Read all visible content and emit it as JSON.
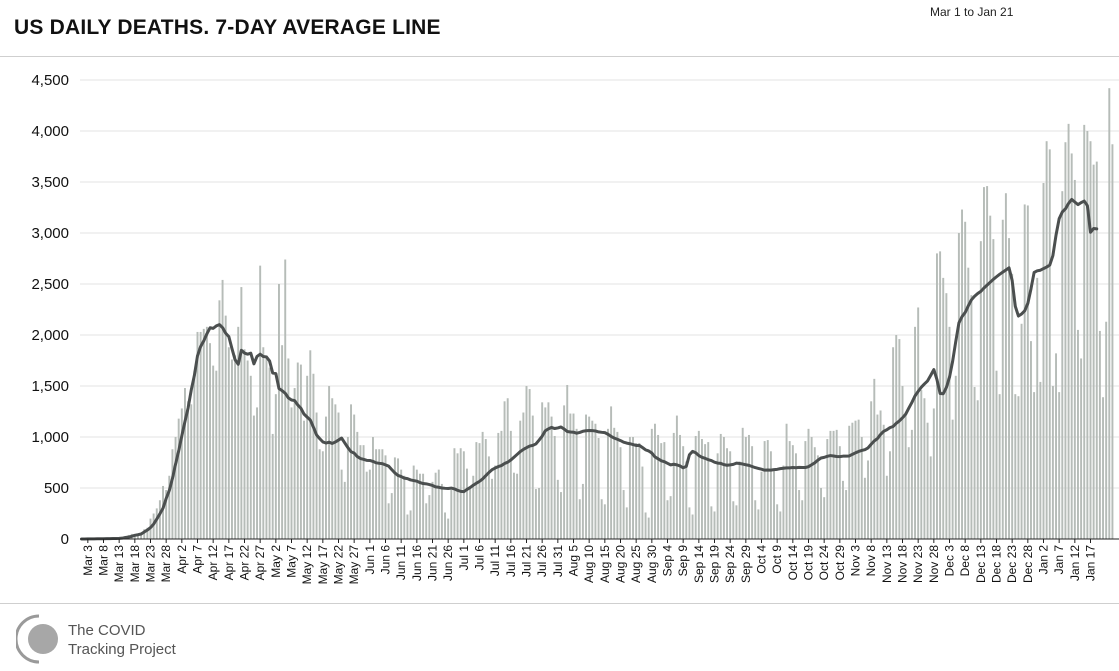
{
  "header": {
    "title": "US DAILY DEATHS. 7-DAY AVERAGE LINE",
    "date_range": "Mar 1 to Jan 21"
  },
  "footer": {
    "logo_line1": "The COVID",
    "logo_line2": "Tracking Project"
  },
  "colors": {
    "bar": "#b6bcb8",
    "line": "#4b4f4f",
    "grid": "#e3e3e3",
    "axis": "#222222"
  },
  "chart_data": {
    "type": "bar",
    "title": "US DAILY DEATHS. 7-DAY AVERAGE LINE",
    "xlabel": "",
    "ylabel": "",
    "ylim": [
      0,
      4500
    ],
    "yticks": [
      0,
      500,
      1000,
      1500,
      2000,
      2500,
      3000,
      3500,
      4000,
      4500
    ],
    "ytick_labels": [
      "0",
      "500",
      "1,000",
      "1,500",
      "2,000",
      "2,500",
      "3,000",
      "3,500",
      "4,000",
      "4,500"
    ],
    "grid": true,
    "start_date": "Mar 1",
    "x_tick_labels": [
      "Mar 3",
      "Mar 8",
      "Mar 13",
      "Mar 18",
      "Mar 23",
      "Mar 28",
      "Apr 2",
      "Apr 7",
      "Apr 12",
      "Apr 17",
      "Apr 22",
      "Apr 27",
      "May 2",
      "May 7",
      "May 12",
      "May 17",
      "May 22",
      "May 27",
      "Jun 1",
      "Jun 6",
      "Jun 11",
      "Jun 16",
      "Jun 21",
      "Jun 26",
      "Jul 1",
      "Jul 6",
      "Jul 11",
      "Jul 16",
      "Jul 21",
      "Jul 26",
      "Jul 31",
      "Aug 5",
      "Aug 10",
      "Aug 15",
      "Aug 20",
      "Aug 25",
      "Aug 30",
      "Sep 4",
      "Sep 9",
      "Sep 14",
      "Sep 19",
      "Sep 24",
      "Sep 29",
      "Oct 4",
      "Oct 9",
      "Oct 14",
      "Oct 19",
      "Oct 24",
      "Oct 29",
      "Nov 3",
      "Nov 8",
      "Nov 13",
      "Nov 18",
      "Nov 23",
      "Nov 28",
      "Dec 3",
      "Dec 8",
      "Dec 13",
      "Dec 18",
      "Dec 23",
      "Dec 28",
      "Jan 2",
      "Jan 7",
      "Jan 12",
      "Jan 17"
    ],
    "series": [
      {
        "name": "Daily deaths",
        "kind": "bar",
        "values": [
          0,
          0,
          1,
          1,
          2,
          1,
          3,
          4,
          3,
          5,
          5,
          7,
          8,
          10,
          12,
          40,
          50,
          30,
          45,
          55,
          95,
          110,
          200,
          250,
          300,
          380,
          520,
          480,
          620,
          880,
          1000,
          1180,
          1280,
          1480,
          1350,
          1320,
          1650,
          2030,
          2030,
          2060,
          2080,
          1920,
          1700,
          1650,
          2340,
          2540,
          2190,
          1880,
          1760,
          1800,
          2080,
          2470,
          1860,
          1750,
          1600,
          1210,
          1290,
          2680,
          1880,
          1800,
          1680,
          1030,
          1420,
          2500,
          1900,
          2740,
          1770,
          1290,
          1480,
          1730,
          1710,
          1160,
          1600,
          1850,
          1620,
          1240,
          880,
          860,
          1200,
          1500,
          1380,
          1320,
          1240,
          680,
          560,
          1000,
          1320,
          1220,
          1050,
          920,
          920,
          660,
          680,
          1000,
          880,
          880,
          880,
          820,
          350,
          450,
          800,
          790,
          680,
          620,
          240,
          280,
          720,
          680,
          640,
          640,
          350,
          430,
          560,
          650,
          680,
          540,
          260,
          200,
          480,
          890,
          840,
          890,
          860,
          690,
          490,
          620,
          950,
          940,
          1050,
          980,
          810,
          590,
          720,
          1040,
          1060,
          1350,
          1380,
          1060,
          650,
          640,
          1160,
          1240,
          1500,
          1470,
          1210,
          490,
          500,
          1340,
          1290,
          1340,
          1200,
          1010,
          580,
          460,
          1310,
          1510,
          1230,
          1230,
          1080,
          390,
          540,
          1220,
          1200,
          1160,
          1130,
          990,
          390,
          340,
          1080,
          1300,
          1090,
          1050,
          900,
          480,
          310,
          1000,
          1000,
          940,
          940,
          710,
          260,
          210,
          1080,
          1130,
          1020,
          940,
          950,
          380,
          420,
          1040,
          1210,
          1020,
          910,
          760,
          310,
          240,
          1010,
          1060,
          980,
          930,
          950,
          320,
          270,
          840,
          1030,
          1000,
          890,
          860,
          370,
          330,
          760,
          1090,
          1000,
          1020,
          910,
          380,
          290,
          660,
          960,
          970,
          860,
          680,
          340,
          270,
          720,
          1130,
          960,
          920,
          840,
          480,
          380,
          960,
          1080,
          1000,
          900,
          820,
          500,
          410,
          980,
          1060,
          1060,
          1070,
          910,
          570,
          480,
          1110,
          1140,
          1160,
          1170,
          1000,
          600,
          770,
          1350,
          1570,
          1220,
          1260,
          1120,
          620,
          860,
          1880,
          2000,
          1960,
          1500,
          1230,
          900,
          1070,
          2080,
          2270,
          1460,
          1380,
          1140,
          810,
          1280,
          2800,
          2820,
          2560,
          2410,
          2080,
          1170,
          1600,
          3000,
          3230,
          3110,
          2660,
          2390,
          1490,
          1360,
          2920,
          3450,
          3460,
          3170,
          2940,
          1650,
          1420,
          3130,
          3390,
          2950,
          2600,
          1420,
          1400,
          2110,
          3280,
          3270,
          1940,
          1440,
          2560,
          1540,
          3490,
          3900,
          3820,
          1500,
          1820,
          1440,
          3410,
          3890,
          4070,
          3780,
          3520,
          2050,
          1770,
          4060,
          4000,
          3900,
          3670,
          3700,
          2040,
          1390,
          2130,
          4420,
          3870
        ]
      },
      {
        "name": "7-day average",
        "kind": "line",
        "values": [
          0,
          0,
          1,
          1,
          1,
          2,
          2,
          3,
          4,
          4,
          5,
          5,
          6,
          8,
          15,
          19,
          26,
          36,
          42,
          49,
          69,
          88,
          112,
          146,
          195,
          247,
          302,
          397,
          476,
          593,
          735,
          864,
          1012,
          1153,
          1284,
          1460,
          1603,
          1796,
          1887,
          1942,
          2012,
          2071,
          2065,
          2089,
          2102,
          2072,
          2017,
          1984,
          1866,
          1757,
          1713,
          1850,
          1823,
          1812,
          1822,
          1717,
          1790,
          1812,
          1789,
          1785,
          1746,
          1627,
          1622,
          1475,
          1454,
          1429,
          1383,
          1363,
          1357,
          1314,
          1282,
          1224,
          1195,
          1167,
          1096,
          1020,
          984,
          952,
          941,
          949,
          937,
          951,
          970,
          990,
          942,
          896,
          856,
          842,
          808,
          789,
          781,
          771,
          770,
          761,
          747,
          742,
          738,
          727,
          714,
          680,
          648,
          623,
          612,
          597,
          592,
          579,
          573,
          567,
          553,
          544,
          541,
          534,
          525,
          511,
          507,
          500,
          497,
          495,
          499,
          491,
          477,
          467,
          464,
          486,
          504,
          527,
          547,
          565,
          589,
          621,
          652,
          679,
          696,
          710,
          720,
          740,
          753,
          774,
          801,
          829,
          857,
          878,
          895,
          911,
          918,
          932,
          969,
          1008,
          1061,
          1080,
          1094,
          1083,
          1089,
          1098,
          1078,
          1054,
          1049,
          1047,
          1037,
          1045,
          1056,
          1061,
          1064,
          1063,
          1059,
          1050,
          1046,
          1043,
          1027,
          1006,
          989,
          978,
          965,
          949,
          940,
          934,
          926,
          917,
          918,
          897,
          874,
          863,
          843,
          805,
          786,
          767,
          758,
          742,
          727,
          733,
          727,
          716,
          698,
          712,
          826,
          859,
          846,
          818,
          801,
          791,
          778,
          769,
          753,
          744,
          741,
          729,
          723,
          727,
          732,
          744,
          740,
          735,
          728,
          722,
          711,
          700,
          692,
          684,
          675,
          676,
          675,
          680,
          683,
          690,
          694,
          697,
          697,
          701,
          699,
          702,
          701,
          701,
          709,
          728,
          747,
          773,
          794,
          800,
          811,
          818,
          814,
          809,
          808,
          812,
          813,
          814,
          830,
          845,
          858,
          868,
          876,
          893,
          929,
          962,
          984,
          1025,
          1056,
          1071,
          1092,
          1103,
          1134,
          1158,
          1188,
          1223,
          1282,
          1339,
          1403,
          1447,
          1488,
          1520,
          1550,
          1604,
          1661,
          1562,
          1427,
          1424,
          1486,
          1586,
          1742,
          1937,
          2118,
          2180,
          2221,
          2286,
          2345,
          2380,
          2407,
          2428,
          2461,
          2489,
          2518,
          2546,
          2571,
          2595,
          2616,
          2637,
          2658,
          2534,
          2281,
          2186,
          2206,
          2237,
          2310,
          2452,
          2613,
          2629,
          2635,
          2651,
          2666,
          2686,
          2779,
          2980,
          3141,
          3206,
          3237,
          3290,
          3329,
          3304,
          3278,
          3298,
          3313,
          3269,
          3007,
          3044,
          3040
        ]
      }
    ]
  }
}
